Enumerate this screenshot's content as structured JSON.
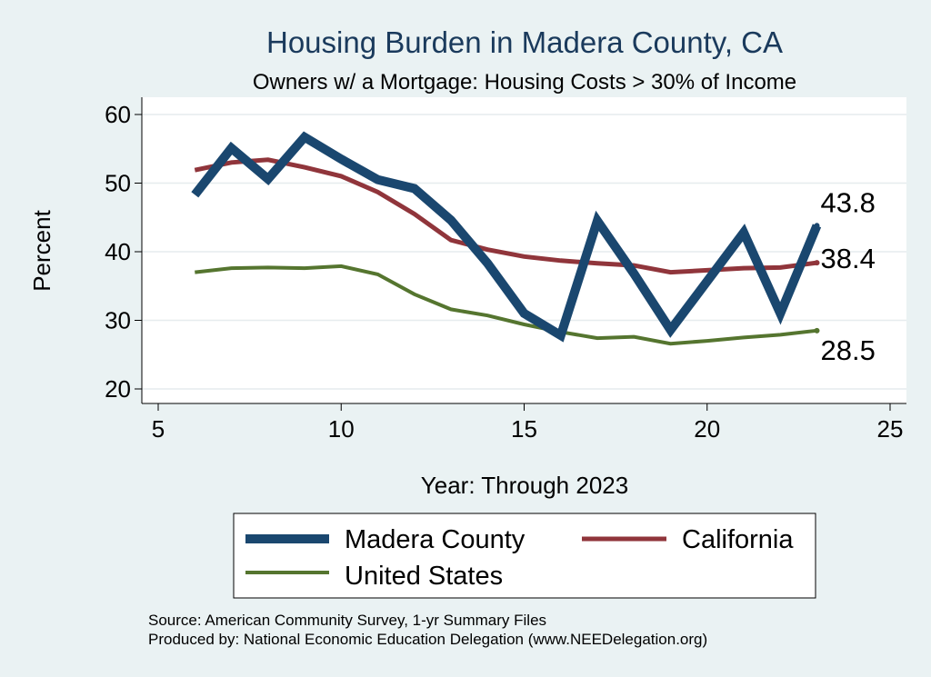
{
  "chart_data": {
    "type": "line",
    "title": "Housing Burden in Madera County, CA",
    "subtitle": "Owners w/ a Mortgage: Housing Costs > 30% of Income",
    "xlabel": "Year: Through 2023",
    "ylabel": "Percent",
    "xlim": [
      5,
      25
    ],
    "ylim": [
      18,
      62
    ],
    "xticks": [
      5,
      10,
      15,
      20,
      25
    ],
    "yticks": [
      20,
      30,
      40,
      50,
      60
    ],
    "grid": "horizontal",
    "legend_position": "bottom",
    "x": [
      6,
      7,
      8,
      9,
      10,
      11,
      12,
      13,
      14,
      15,
      16,
      17,
      18,
      19,
      20,
      21,
      22,
      23
    ],
    "series": [
      {
        "name": "Madera County",
        "color": "#1a476f",
        "values": [
          48.3,
          55.1,
          50.6,
          56.7,
          53.5,
          50.5,
          49.2,
          44.6,
          38.3,
          31.0,
          27.8,
          44.5,
          36.8,
          28.6,
          35.7,
          42.8,
          31.0,
          43.8
        ],
        "end_label": "43.8"
      },
      {
        "name": "California",
        "color": "#90353b",
        "values": [
          51.9,
          53.0,
          53.4,
          52.3,
          51.0,
          48.7,
          45.5,
          41.7,
          40.3,
          39.3,
          38.7,
          38.3,
          38.0,
          37.0,
          37.3,
          37.6,
          37.7,
          38.4
        ],
        "end_label": "38.4"
      },
      {
        "name": "United States",
        "color": "#55752f",
        "values": [
          37.0,
          37.6,
          37.7,
          37.6,
          37.9,
          36.7,
          33.8,
          31.6,
          30.7,
          29.4,
          28.3,
          27.4,
          27.6,
          26.6,
          27.0,
          27.5,
          27.9,
          28.5
        ],
        "end_label": "28.5"
      }
    ],
    "notes": [
      "Source: American Community Survey, 1-yr Summary Files",
      "Produced by: National Economic Education Delegation (www.NEEDelegation.org)"
    ]
  }
}
